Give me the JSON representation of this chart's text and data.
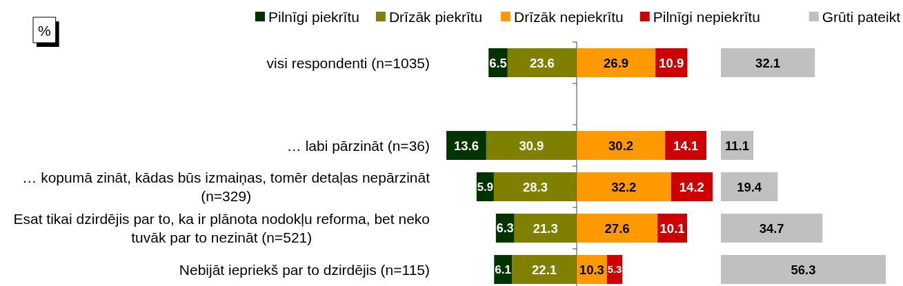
{
  "chart_data": [
    {
      "type": "bar",
      "orientation": "horizontal",
      "stacked": true,
      "annotations": [
        "%"
      ],
      "categories": [
        "visi respondenti (n=1035)",
        null,
        "… labi pārzināt (n=36)",
        "… kopumā zināt, kādas būs izmaiņas, tomēr detaļas nepārzināt (n=329)",
        "Esat tikai dzirdējis par to, ka ir plānota nodokļu reforma, bet neko tuvāk par to nezināt (n=521)",
        "Nebijāt iepriekš par to dzirdējis (n=115)"
      ],
      "series": [
        {
          "name": "Drīzāk piekrītu",
          "color": "#808000",
          "values": [
            23.6,
            null,
            30.9,
            28.3,
            21.3,
            22.1
          ]
        },
        {
          "name": "Pilnīgi piekrītu",
          "color": "#003300",
          "values": [
            6.5,
            null,
            13.6,
            5.9,
            6.3,
            6.1
          ]
        }
      ],
      "xlim": [
        45,
        0
      ],
      "data_labels": true,
      "legend": "top",
      "tick_labels": "y"
    },
    {
      "type": "bar",
      "orientation": "horizontal",
      "stacked": true,
      "categories": [
        null,
        null,
        null,
        null,
        null,
        null
      ],
      "series": [
        {
          "name": "Drīzāk nepiekrītu",
          "color": "#ff9900",
          "values": [
            26.9,
            null,
            30.2,
            32.2,
            27.6,
            10.3
          ]
        },
        {
          "name": "Pilnīgi nepiekrītu",
          "color": "#cc0000",
          "values": [
            10.9,
            null,
            14.1,
            14.2,
            10.1,
            5.3
          ]
        }
      ],
      "xlim": [
        0,
        47
      ],
      "data_labels": true,
      "legend": "top",
      "tick_labels": false
    },
    {
      "type": "bar",
      "orientation": "horizontal",
      "categories": [
        null,
        null,
        null,
        null,
        null,
        null
      ],
      "series": [
        {
          "name": "Grūti pateikt",
          "color": "#c0c0c0",
          "values": [
            32.1,
            null,
            11.1,
            19.4,
            34.7,
            56.3
          ]
        }
      ],
      "xlim": [
        0,
        57
      ],
      "data_labels": true,
      "legend": "top right",
      "tick_labels": false
    }
  ]
}
